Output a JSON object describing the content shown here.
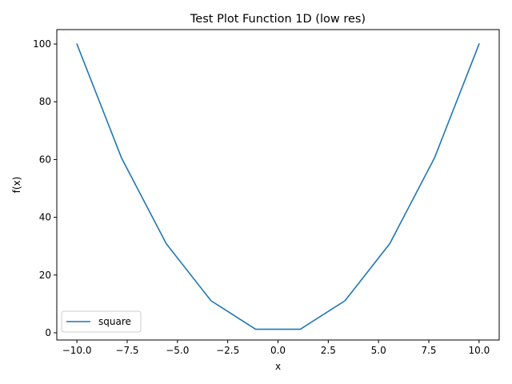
{
  "chart_data": {
    "type": "line",
    "title": "Test Plot Function 1D (low res)",
    "xlabel": "x",
    "ylabel": "f(x)",
    "xlim": [
      -11,
      11
    ],
    "ylim": [
      -2.5,
      105
    ],
    "xticks": [
      -10.0,
      -7.5,
      -5.0,
      -2.5,
      0.0,
      2.5,
      5.0,
      7.5,
      10.0
    ],
    "xtick_labels": [
      "−10.0",
      "−7.5",
      "−5.0",
      "−2.5",
      "0.0",
      "2.5",
      "5.0",
      "7.5",
      "10.0"
    ],
    "yticks": [
      0,
      20,
      40,
      60,
      80,
      100
    ],
    "ytick_labels": [
      "0",
      "20",
      "40",
      "60",
      "80",
      "100"
    ],
    "grid": false,
    "legend_position": "lower-left",
    "series": [
      {
        "name": "square",
        "color": "#1f77b4",
        "x": [
          -10.0,
          -7.778,
          -5.556,
          -3.333,
          -1.111,
          1.111,
          3.333,
          5.556,
          7.778,
          10.0
        ],
        "y": [
          100.0,
          60.49,
          30.86,
          11.11,
          1.23,
          1.23,
          11.11,
          30.86,
          60.49,
          100.0
        ]
      }
    ]
  }
}
